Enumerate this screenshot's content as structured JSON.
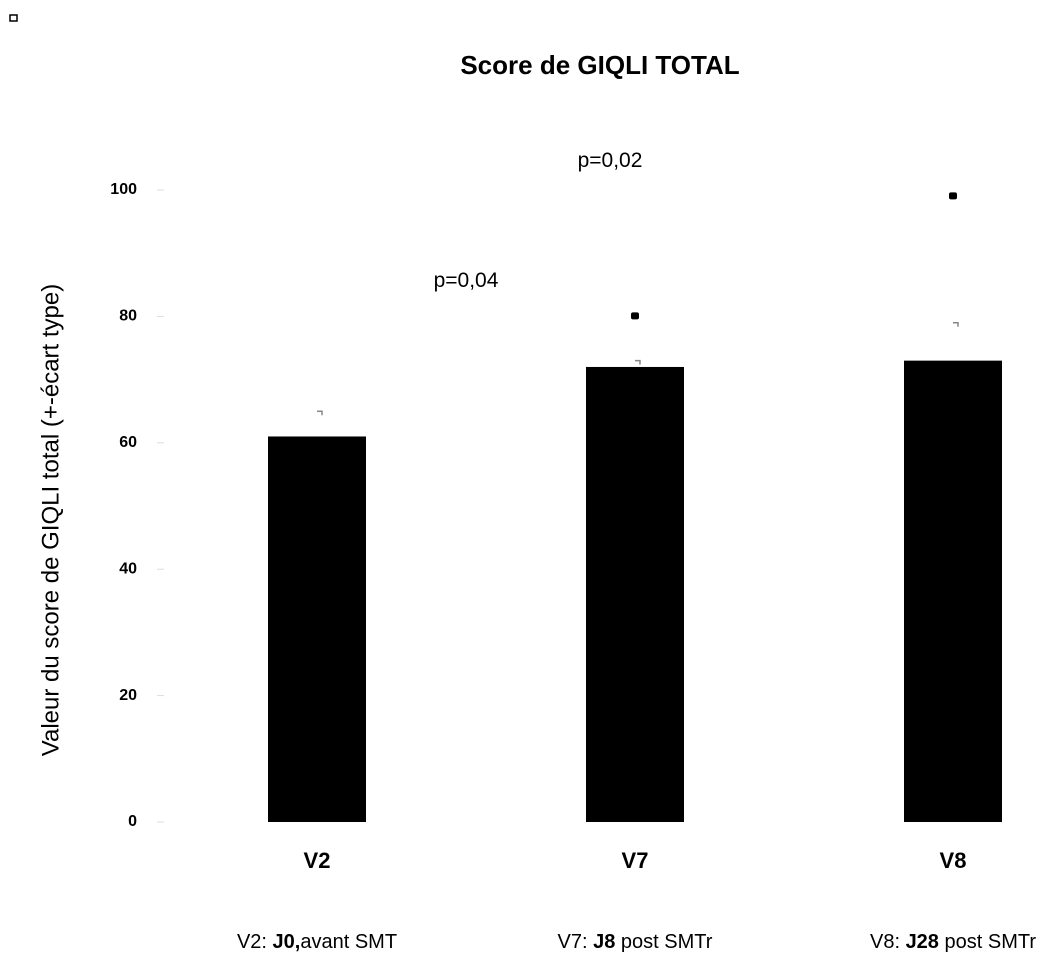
{
  "chart_data": {
    "type": "bar",
    "title": "Score de GIQLI TOTAL",
    "y_label": "Valeur du score de GIQLI total (+-écart type)",
    "categories": [
      "V2",
      "V7",
      "V8"
    ],
    "values": [
      61,
      72,
      73
    ],
    "errors": [
      4,
      1,
      6
    ],
    "color": "#000000",
    "ylim": [
      0,
      100
    ],
    "yticks": [
      0,
      20,
      40,
      60,
      80,
      100
    ],
    "annotations": [
      {
        "text": "p=0,04",
        "value": 80
      },
      {
        "text": "p=0,02",
        "value": 99
      }
    ],
    "notes": [
      [
        "V2: ",
        "J0,",
        "avant SMT"
      ],
      [
        "V7: ",
        "J8",
        " post SMTr"
      ],
      [
        "V8: ",
        "J28",
        " post SMTr"
      ]
    ]
  }
}
